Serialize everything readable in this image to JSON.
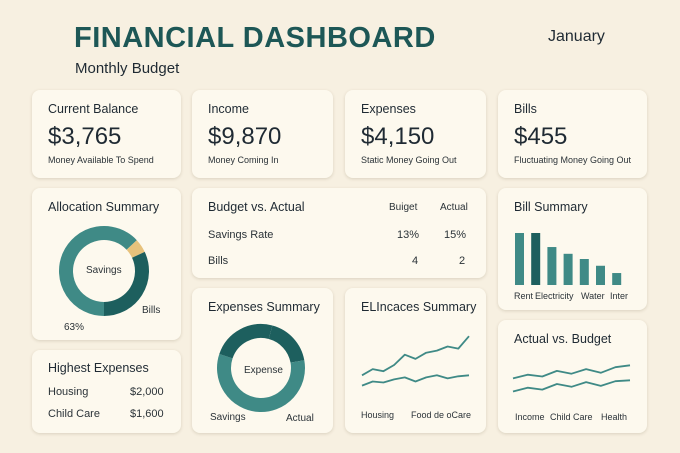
{
  "header": {
    "title": "FINANCIAL DASHBOARD",
    "subtitle": "Monthly Budget",
    "month": "January"
  },
  "kpis": [
    {
      "title": "Current Balance",
      "value": "$3,765",
      "caption": "Money Available To Spend"
    },
    {
      "title": "Income",
      "value": "$9,870",
      "caption": "Money Coming In"
    },
    {
      "title": "Expenses",
      "value": "$4,150",
      "caption": "Static Money Going Out"
    },
    {
      "title": "Bills",
      "value": "$455",
      "caption": "Fluctuating Money Going Out"
    }
  ],
  "allocation": {
    "title": "Allocation Summary",
    "center_label": "Savings",
    "bills_label": "Bills",
    "pct_label": "63%"
  },
  "budget_actual": {
    "title": "Budget vs. Actual",
    "col_budget": "Buiget",
    "col_actual": "Actual",
    "rows": [
      {
        "label": "Savings Rate",
        "budget": "13%",
        "actual": "15%"
      },
      {
        "label": "Bills",
        "budget": "4",
        "actual": "2"
      }
    ]
  },
  "bill_summary": {
    "title": "Bill Summary",
    "labels": [
      "Rent",
      "Electricity",
      "Water",
      "Inter"
    ]
  },
  "highest_expenses": {
    "title": "Highest Expenses",
    "rows": [
      {
        "label": "Housing",
        "value": "$2,000"
      },
      {
        "label": "Child Care",
        "value": "$1,600"
      }
    ]
  },
  "expenses_summary": {
    "title": "Expenses Summary",
    "center_label": "Expense",
    "left_label": "Savings",
    "right_label": "Actual"
  },
  "elincaces_summary": {
    "title": "ELIncaces Summary",
    "label_left": "Housing",
    "label_right": "Food de oCare"
  },
  "actual_budget": {
    "title": "Actual vs. Budget",
    "labels": [
      "Income",
      "Child Care",
      "Health"
    ]
  },
  "colors": {
    "dark_teal": "#1d5f5e",
    "mid_teal": "#3f8a86",
    "light_teal": "#7fb3ae",
    "gold": "#e7c27c",
    "background": "#f7f0e1",
    "card": "#fdf9ee"
  },
  "chart_data": [
    {
      "type": "pie",
      "title": "Allocation Summary",
      "labels": [
        "Savings",
        "Bills",
        ""
      ],
      "values": [
        63,
        5,
        32
      ]
    },
    {
      "type": "bar",
      "title": "Bill Summary",
      "categories": [
        "Rent",
        "Electricity",
        "",
        "",
        "Water",
        "",
        "Inter"
      ],
      "values": [
        100,
        100,
        73,
        60,
        50,
        37,
        23
      ],
      "ylim": [
        0,
        100
      ]
    },
    {
      "type": "pie",
      "title": "Expenses Summary",
      "labels": [
        "Savings",
        "Expense",
        "Actual"
      ],
      "values": [
        18,
        58,
        24
      ]
    },
    {
      "type": "line",
      "title": "ELIncaces Summary",
      "x": [
        0,
        1,
        2,
        3,
        4,
        5,
        6,
        7,
        8,
        9,
        10
      ],
      "series": [
        {
          "values": [
            24,
            30,
            28,
            34,
            44,
            40,
            46,
            48,
            52,
            50,
            62
          ]
        },
        {
          "values": [
            14,
            18,
            17,
            20,
            22,
            18,
            22,
            24,
            21,
            23,
            24
          ]
        }
      ],
      "ylim": [
        0,
        70
      ]
    },
    {
      "type": "line",
      "title": "Actual vs. Budget",
      "x": [
        0,
        1,
        2,
        3,
        4,
        5,
        6,
        7,
        8
      ],
      "series": [
        {
          "values": [
            36,
            40,
            38,
            44,
            41,
            46,
            42,
            48,
            50
          ]
        },
        {
          "values": [
            22,
            26,
            24,
            30,
            27,
            32,
            28,
            33,
            34
          ]
        }
      ],
      "ylim": [
        0,
        60
      ]
    }
  ]
}
